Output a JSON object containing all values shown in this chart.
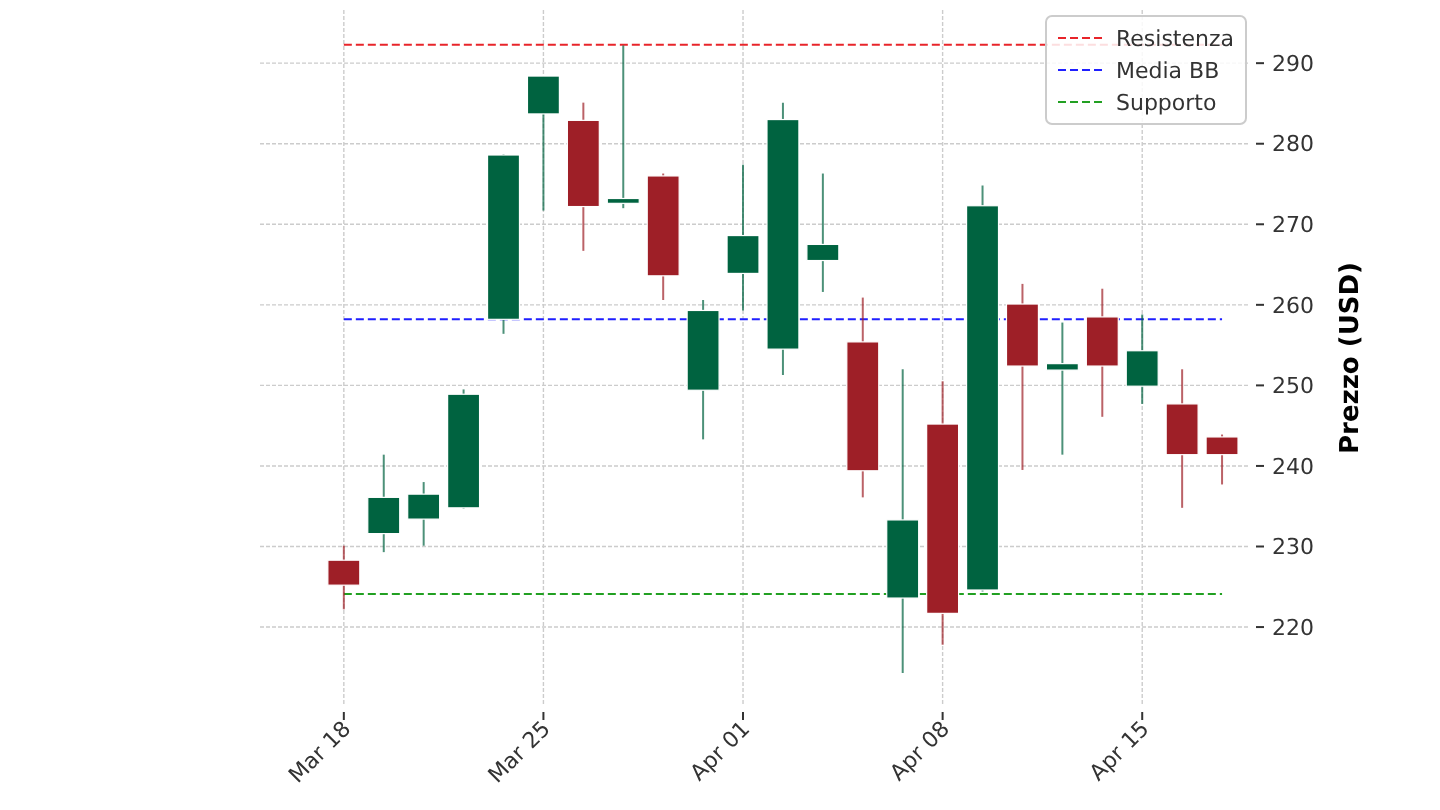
{
  "chart_data": {
    "type": "candlestick",
    "ylabel": "Prezzo (USD)",
    "categories": [
      "Mar 18",
      null,
      null,
      null,
      null,
      "Mar 25",
      null,
      null,
      null,
      null,
      "Apr 01",
      null,
      null,
      null,
      null,
      "Apr 08",
      null,
      null,
      null,
      null,
      "Apr 15",
      null,
      null
    ],
    "ohlc": [
      [
        228.3,
        230.1,
        222.2,
        225.2
      ],
      [
        231.6,
        241.4,
        229.3,
        236.1
      ],
      [
        233.4,
        238.0,
        230.1,
        236.5
      ],
      [
        234.8,
        249.5,
        234.7,
        248.9
      ],
      [
        258.2,
        278.7,
        256.4,
        278.6
      ],
      [
        283.7,
        288.4,
        271.7,
        288.4
      ],
      [
        282.9,
        285.1,
        266.7,
        272.2
      ],
      [
        272.6,
        292.2,
        272.0,
        273.2
      ],
      [
        276.0,
        276.3,
        260.6,
        263.6
      ],
      [
        249.4,
        260.6,
        243.3,
        259.3
      ],
      [
        263.9,
        277.4,
        259.3,
        268.6
      ],
      [
        254.5,
        285.1,
        251.3,
        283.0
      ],
      [
        265.5,
        276.3,
        261.6,
        267.5
      ],
      [
        255.4,
        260.9,
        236.1,
        239.4
      ],
      [
        223.6,
        252.0,
        214.3,
        233.3
      ],
      [
        245.2,
        250.5,
        217.8,
        221.7
      ],
      [
        224.6,
        274.8,
        224.4,
        272.3
      ],
      [
        260.1,
        262.6,
        239.5,
        252.4
      ],
      [
        251.9,
        257.8,
        241.4,
        252.7
      ],
      [
        258.5,
        262.0,
        246.1,
        252.4
      ],
      [
        249.9,
        258.8,
        247.7,
        254.3
      ],
      [
        247.7,
        252.0,
        234.8,
        241.4
      ],
      [
        243.6,
        243.9,
        237.7,
        241.4
      ]
    ],
    "colors": [
      "#9e1f27",
      "#006340",
      "#006340",
      "#006340",
      "#006340",
      "#006340",
      "#9e1f27",
      "#006340",
      "#9e1f27",
      "#006340",
      "#006340",
      "#006340",
      "#006340",
      "#9e1f27",
      "#006340",
      "#9e1f27",
      "#006340",
      "#9e1f27",
      "#006340",
      "#9e1f27",
      "#006340",
      "#9e1f27",
      "#9e1f27"
    ],
    "ylim": [
      210.2,
      296.6
    ],
    "yticks": [
      220,
      230,
      240,
      250,
      260,
      270,
      280,
      290
    ],
    "ref_lines": [
      {
        "axis": "y",
        "value": 292.3,
        "label": "Resistenza",
        "color": "#e8242a",
        "line_style": "dashed"
      },
      {
        "axis": "y",
        "value": 258.2,
        "label": "Media BB",
        "color": "#1f1fff",
        "line_style": "dashed"
      },
      {
        "axis": "y",
        "value": 224.1,
        "label": "Supporto",
        "color": "#22a022",
        "line_style": "dashed"
      }
    ],
    "grid": true,
    "legend": "top right"
  }
}
